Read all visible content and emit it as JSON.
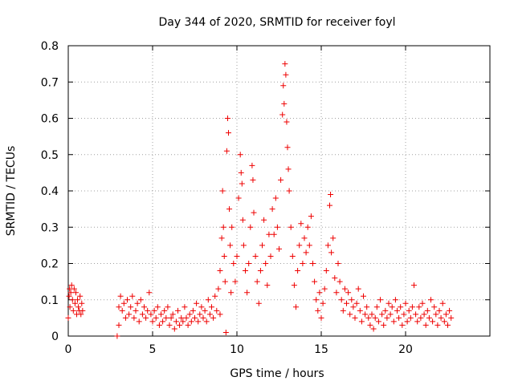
{
  "chart_data": {
    "type": "scatter",
    "title": "Day 344 of 2020, SRMTID for receiver foyl",
    "xlabel": "GPS time / hours",
    "ylabel": "SRMTID / TECUs",
    "xlim": [
      0,
      25
    ],
    "ylim": [
      0,
      0.8
    ],
    "xticks": [
      0,
      5,
      10,
      15,
      20
    ],
    "xtick_labels": [
      "0",
      "5",
      "10",
      "15",
      "20"
    ],
    "yticks": [
      0,
      0.1,
      0.2,
      0.3,
      0.4,
      0.5,
      0.6,
      0.7,
      0.8
    ],
    "ytick_labels": [
      "0",
      "0.1",
      "0.2",
      "0.3",
      "0.4",
      "0.5",
      "0.6",
      "0.7",
      "0.8"
    ],
    "grid": true,
    "marker": "plus",
    "color": "#ee0000",
    "points": [
      [
        0.0,
        0.05
      ],
      [
        0.05,
        0.11
      ],
      [
        0.08,
        0.13
      ],
      [
        0.1,
        0.08
      ],
      [
        0.15,
        0.12
      ],
      [
        0.2,
        0.14
      ],
      [
        0.25,
        0.1
      ],
      [
        0.3,
        0.07
      ],
      [
        0.35,
        0.13
      ],
      [
        0.4,
        0.09
      ],
      [
        0.45,
        0.12
      ],
      [
        0.5,
        0.06
      ],
      [
        0.55,
        0.1
      ],
      [
        0.6,
        0.08
      ],
      [
        0.65,
        0.07
      ],
      [
        0.7,
        0.11
      ],
      [
        0.75,
        0.06
      ],
      [
        0.8,
        0.09
      ],
      [
        0.85,
        0.07
      ],
      [
        2.9,
        0.0
      ],
      [
        3.0,
        0.03
      ],
      [
        3.0,
        0.08
      ],
      [
        3.1,
        0.11
      ],
      [
        3.2,
        0.07
      ],
      [
        3.3,
        0.09
      ],
      [
        3.4,
        0.05
      ],
      [
        3.5,
        0.1
      ],
      [
        3.6,
        0.06
      ],
      [
        3.7,
        0.08
      ],
      [
        3.8,
        0.11
      ],
      [
        3.9,
        0.05
      ],
      [
        4.0,
        0.07
      ],
      [
        4.1,
        0.09
      ],
      [
        4.2,
        0.04
      ],
      [
        4.3,
        0.1
      ],
      [
        4.4,
        0.06
      ],
      [
        4.5,
        0.08
      ],
      [
        4.6,
        0.05
      ],
      [
        4.7,
        0.07
      ],
      [
        4.8,
        0.12
      ],
      [
        4.9,
        0.06
      ],
      [
        5.0,
        0.04
      ],
      [
        5.1,
        0.07
      ],
      [
        5.2,
        0.05
      ],
      [
        5.3,
        0.08
      ],
      [
        5.4,
        0.03
      ],
      [
        5.5,
        0.06
      ],
      [
        5.6,
        0.04
      ],
      [
        5.7,
        0.07
      ],
      [
        5.8,
        0.05
      ],
      [
        5.9,
        0.08
      ],
      [
        6.0,
        0.03
      ],
      [
        6.1,
        0.05
      ],
      [
        6.2,
        0.06
      ],
      [
        6.3,
        0.02
      ],
      [
        6.4,
        0.04
      ],
      [
        6.5,
        0.07
      ],
      [
        6.6,
        0.03
      ],
      [
        6.7,
        0.05
      ],
      [
        6.8,
        0.04
      ],
      [
        6.9,
        0.08
      ],
      [
        7.0,
        0.05
      ],
      [
        7.1,
        0.03
      ],
      [
        7.2,
        0.06
      ],
      [
        7.3,
        0.04
      ],
      [
        7.4,
        0.07
      ],
      [
        7.5,
        0.05
      ],
      [
        7.6,
        0.09
      ],
      [
        7.7,
        0.04
      ],
      [
        7.8,
        0.06
      ],
      [
        7.9,
        0.08
      ],
      [
        8.0,
        0.05
      ],
      [
        8.1,
        0.07
      ],
      [
        8.2,
        0.04
      ],
      [
        8.3,
        0.1
      ],
      [
        8.4,
        0.06
      ],
      [
        8.5,
        0.08
      ],
      [
        8.6,
        0.05
      ],
      [
        8.7,
        0.11
      ],
      [
        8.8,
        0.07
      ],
      [
        8.9,
        0.13
      ],
      [
        9.0,
        0.06
      ],
      [
        9.0,
        0.18
      ],
      [
        9.1,
        0.27
      ],
      [
        9.15,
        0.4
      ],
      [
        9.2,
        0.3
      ],
      [
        9.25,
        0.22
      ],
      [
        9.3,
        0.15
      ],
      [
        9.35,
        0.01
      ],
      [
        9.4,
        0.51
      ],
      [
        9.45,
        0.6
      ],
      [
        9.5,
        0.56
      ],
      [
        9.55,
        0.35
      ],
      [
        9.6,
        0.25
      ],
      [
        9.65,
        0.12
      ],
      [
        9.7,
        0.3
      ],
      [
        9.8,
        0.2
      ],
      [
        9.9,
        0.15
      ],
      [
        10.0,
        0.22
      ],
      [
        10.1,
        0.38
      ],
      [
        10.2,
        0.5
      ],
      [
        10.25,
        0.45
      ],
      [
        10.3,
        0.42
      ],
      [
        10.35,
        0.32
      ],
      [
        10.4,
        0.25
      ],
      [
        10.5,
        0.18
      ],
      [
        10.6,
        0.12
      ],
      [
        10.7,
        0.2
      ],
      [
        10.8,
        0.3
      ],
      [
        10.9,
        0.47
      ],
      [
        10.95,
        0.43
      ],
      [
        11.0,
        0.34
      ],
      [
        11.1,
        0.22
      ],
      [
        11.2,
        0.15
      ],
      [
        11.3,
        0.09
      ],
      [
        11.4,
        0.18
      ],
      [
        11.5,
        0.25
      ],
      [
        11.6,
        0.32
      ],
      [
        11.7,
        0.2
      ],
      [
        11.8,
        0.14
      ],
      [
        11.9,
        0.28
      ],
      [
        12.0,
        0.22
      ],
      [
        12.1,
        0.35
      ],
      [
        12.2,
        0.28
      ],
      [
        12.3,
        0.38
      ],
      [
        12.4,
        0.3
      ],
      [
        12.5,
        0.24
      ],
      [
        12.6,
        0.43
      ],
      [
        12.7,
        0.61
      ],
      [
        12.75,
        0.69
      ],
      [
        12.8,
        0.64
      ],
      [
        12.85,
        0.75
      ],
      [
        12.9,
        0.72
      ],
      [
        12.95,
        0.59
      ],
      [
        13.0,
        0.52
      ],
      [
        13.05,
        0.46
      ],
      [
        13.1,
        0.4
      ],
      [
        13.2,
        0.3
      ],
      [
        13.3,
        0.22
      ],
      [
        13.4,
        0.14
      ],
      [
        13.5,
        0.08
      ],
      [
        13.6,
        0.18
      ],
      [
        13.7,
        0.25
      ],
      [
        13.8,
        0.31
      ],
      [
        13.9,
        0.2
      ],
      [
        14.0,
        0.27
      ],
      [
        14.1,
        0.23
      ],
      [
        14.2,
        0.3
      ],
      [
        14.3,
        0.25
      ],
      [
        14.4,
        0.33
      ],
      [
        14.5,
        0.2
      ],
      [
        14.6,
        0.15
      ],
      [
        14.7,
        0.1
      ],
      [
        14.8,
        0.07
      ],
      [
        14.9,
        0.12
      ],
      [
        15.0,
        0.05
      ],
      [
        15.1,
        0.09
      ],
      [
        15.2,
        0.13
      ],
      [
        15.3,
        0.18
      ],
      [
        15.4,
        0.25
      ],
      [
        15.5,
        0.36
      ],
      [
        15.55,
        0.39
      ],
      [
        15.6,
        0.23
      ],
      [
        15.7,
        0.27
      ],
      [
        15.8,
        0.16
      ],
      [
        15.9,
        0.12
      ],
      [
        16.0,
        0.2
      ],
      [
        16.1,
        0.15
      ],
      [
        16.2,
        0.1
      ],
      [
        16.3,
        0.07
      ],
      [
        16.4,
        0.13
      ],
      [
        16.5,
        0.09
      ],
      [
        16.6,
        0.12
      ],
      [
        16.7,
        0.06
      ],
      [
        16.8,
        0.1
      ],
      [
        16.9,
        0.08
      ],
      [
        17.0,
        0.05
      ],
      [
        17.1,
        0.09
      ],
      [
        17.2,
        0.13
      ],
      [
        17.3,
        0.07
      ],
      [
        17.4,
        0.04
      ],
      [
        17.5,
        0.11
      ],
      [
        17.6,
        0.06
      ],
      [
        17.7,
        0.08
      ],
      [
        17.8,
        0.05
      ],
      [
        17.9,
        0.03
      ],
      [
        18.0,
        0.06
      ],
      [
        18.1,
        0.02
      ],
      [
        18.2,
        0.05
      ],
      [
        18.3,
        0.08
      ],
      [
        18.4,
        0.04
      ],
      [
        18.5,
        0.1
      ],
      [
        18.6,
        0.06
      ],
      [
        18.7,
        0.03
      ],
      [
        18.8,
        0.07
      ],
      [
        18.9,
        0.05
      ],
      [
        19.0,
        0.09
      ],
      [
        19.1,
        0.06
      ],
      [
        19.2,
        0.08
      ],
      [
        19.3,
        0.04
      ],
      [
        19.4,
        0.1
      ],
      [
        19.5,
        0.07
      ],
      [
        19.6,
        0.05
      ],
      [
        19.7,
        0.08
      ],
      [
        19.8,
        0.03
      ],
      [
        19.9,
        0.06
      ],
      [
        20.0,
        0.09
      ],
      [
        20.1,
        0.04
      ],
      [
        20.2,
        0.07
      ],
      [
        20.3,
        0.05
      ],
      [
        20.4,
        0.08
      ],
      [
        20.5,
        0.14
      ],
      [
        20.6,
        0.06
      ],
      [
        20.7,
        0.04
      ],
      [
        20.8,
        0.08
      ],
      [
        20.9,
        0.05
      ],
      [
        21.0,
        0.09
      ],
      [
        21.1,
        0.06
      ],
      [
        21.2,
        0.03
      ],
      [
        21.3,
        0.07
      ],
      [
        21.4,
        0.05
      ],
      [
        21.5,
        0.1
      ],
      [
        21.6,
        0.04
      ],
      [
        21.7,
        0.08
      ],
      [
        21.8,
        0.06
      ],
      [
        21.9,
        0.03
      ],
      [
        22.0,
        0.07
      ],
      [
        22.1,
        0.05
      ],
      [
        22.2,
        0.09
      ],
      [
        22.3,
        0.04
      ],
      [
        22.4,
        0.06
      ],
      [
        22.5,
        0.03
      ],
      [
        22.6,
        0.07
      ],
      [
        22.7,
        0.05
      ]
    ]
  }
}
